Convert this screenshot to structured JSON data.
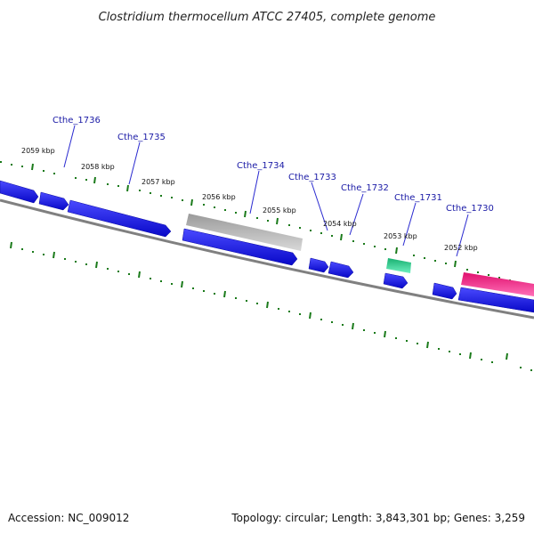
{
  "title": "Clostridium thermocellum ATCC 27405, complete genome",
  "footer": {
    "accession": "Accession: NC_009012",
    "summary": "Topology: circular; Length: 3,843,301 bp; Genes: 3,259"
  },
  "colors": {
    "forward_cds": "#1010e0",
    "pseudogene": "#b8b8b8",
    "rna": "#20d890",
    "trna": "#f0208a",
    "backbone": "#808080",
    "ticks": "#1a7a1a",
    "label_line": "#2a2ad0"
  },
  "gene_labels": [
    "Cthe_1736",
    "Cthe_1735",
    "Cthe_1734",
    "Cthe_1733",
    "Cthe_1732",
    "Cthe_1731",
    "Cthe_1730"
  ],
  "tick_labels": [
    "2059 kbp",
    "2058 kbp",
    "2057 kbp",
    "2056 kbp",
    "2055 kbp",
    "2054 kbp",
    "2053 kbp",
    "2052 kbp"
  ]
}
